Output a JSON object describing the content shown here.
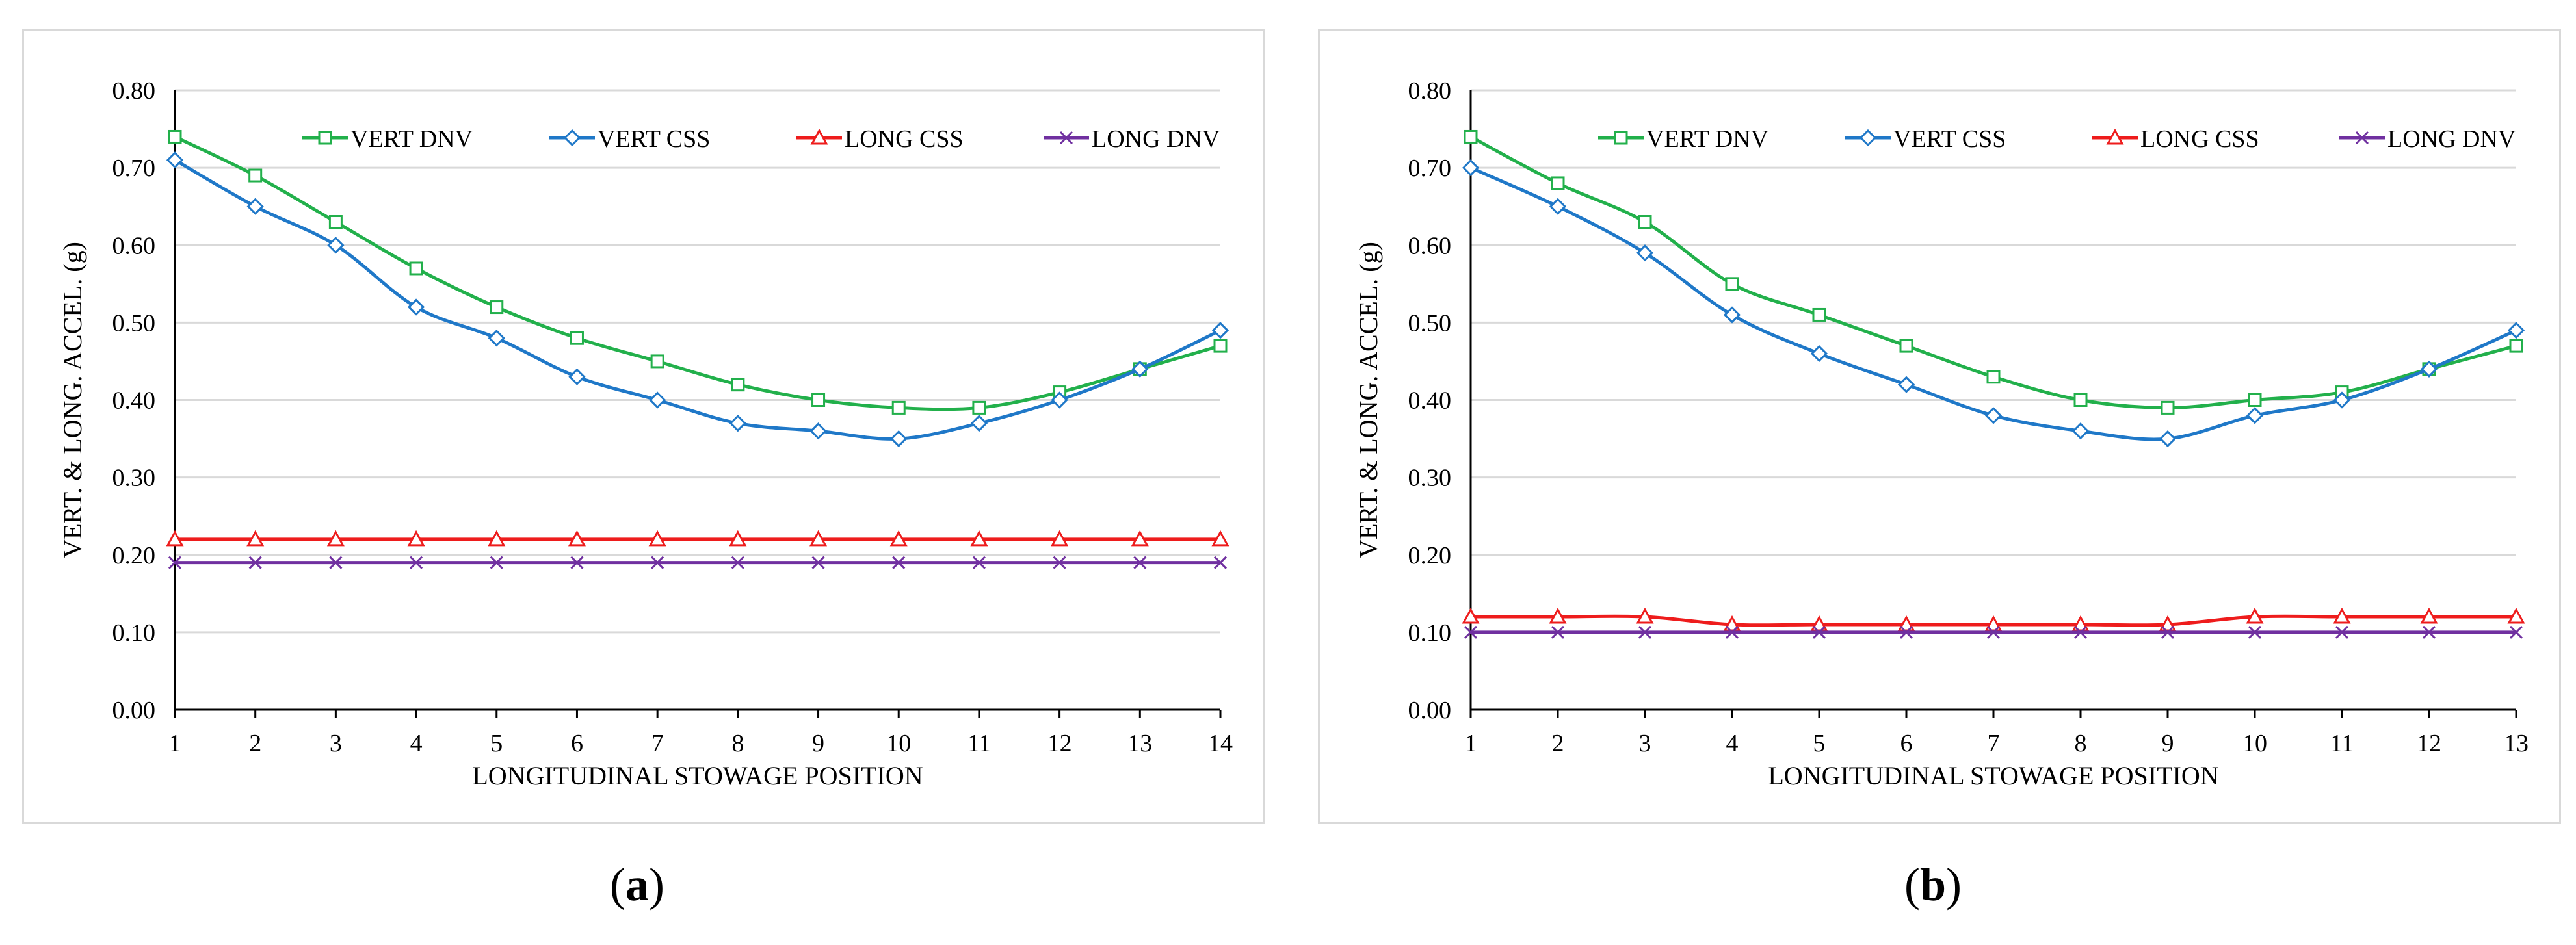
{
  "chart_data": [
    {
      "type": "line",
      "panel": "a",
      "xlabel": "LONGITUDINAL STOWAGE POSITION",
      "ylabel": "VERT. & LONG. ACCEL. (g)",
      "ylim": [
        0,
        0.8
      ],
      "yticks": [
        "0.00",
        "0.10",
        "0.20",
        "0.30",
        "0.40",
        "0.50",
        "0.60",
        "0.70",
        "0.80"
      ],
      "categories": [
        "1",
        "2",
        "3",
        "4",
        "5",
        "6",
        "7",
        "8",
        "9",
        "10",
        "11",
        "12",
        "13",
        "14"
      ],
      "grid": "horizontal",
      "legend": "top",
      "series": [
        {
          "name": "VERT DNV",
          "color": "#22b04b",
          "marker": "square",
          "values": [
            0.74,
            0.69,
            0.63,
            0.57,
            0.52,
            0.48,
            0.45,
            0.42,
            0.4,
            0.39,
            0.39,
            0.41,
            0.44,
            0.47
          ]
        },
        {
          "name": "VERT CSS",
          "color": "#1f78c8",
          "marker": "diamond",
          "values": [
            0.71,
            0.65,
            0.6,
            0.52,
            0.48,
            0.43,
            0.4,
            0.37,
            0.36,
            0.35,
            0.37,
            0.4,
            0.44,
            0.49
          ]
        },
        {
          "name": "LONG CSS",
          "color": "#ee1c1c",
          "marker": "triangle",
          "values": [
            0.22,
            0.22,
            0.22,
            0.22,
            0.22,
            0.22,
            0.22,
            0.22,
            0.22,
            0.22,
            0.22,
            0.22,
            0.22,
            0.22
          ]
        },
        {
          "name": "LONG DNV",
          "color": "#7030a0",
          "marker": "x",
          "values": [
            0.19,
            0.19,
            0.19,
            0.19,
            0.19,
            0.19,
            0.19,
            0.19,
            0.19,
            0.19,
            0.19,
            0.19,
            0.19,
            0.19
          ]
        }
      ]
    },
    {
      "type": "line",
      "panel": "b",
      "xlabel": "LONGITUDINAL STOWAGE POSITION",
      "ylabel": "VERT. & LONG. ACCEL. (g)",
      "ylim": [
        0,
        0.8
      ],
      "yticks": [
        "0.00",
        "0.10",
        "0.20",
        "0.30",
        "0.40",
        "0.50",
        "0.60",
        "0.70",
        "0.80"
      ],
      "categories": [
        "1",
        "2",
        "3",
        "4",
        "5",
        "6",
        "7",
        "8",
        "9",
        "10",
        "11",
        "12",
        "13"
      ],
      "grid": "horizontal",
      "legend": "top",
      "series": [
        {
          "name": "VERT DNV",
          "color": "#22b04b",
          "marker": "square",
          "values": [
            0.74,
            0.68,
            0.63,
            0.55,
            0.51,
            0.47,
            0.43,
            0.4,
            0.39,
            0.4,
            0.41,
            0.44,
            0.47
          ]
        },
        {
          "name": "VERT CSS",
          "color": "#1f78c8",
          "marker": "diamond",
          "values": [
            0.7,
            0.65,
            0.59,
            0.51,
            0.46,
            0.42,
            0.38,
            0.36,
            0.35,
            0.38,
            0.4,
            0.44,
            0.49
          ]
        },
        {
          "name": "LONG CSS",
          "color": "#ee1c1c",
          "marker": "triangle",
          "values": [
            0.12,
            0.12,
            0.12,
            0.11,
            0.11,
            0.11,
            0.11,
            0.11,
            0.11,
            0.12,
            0.12,
            0.12,
            0.12
          ]
        },
        {
          "name": "LONG DNV",
          "color": "#7030a0",
          "marker": "x",
          "values": [
            0.1,
            0.1,
            0.1,
            0.1,
            0.1,
            0.1,
            0.1,
            0.1,
            0.1,
            0.1,
            0.1,
            0.1,
            0.1
          ]
        }
      ]
    }
  ],
  "captions": {
    "a": "a",
    "b": "b"
  }
}
